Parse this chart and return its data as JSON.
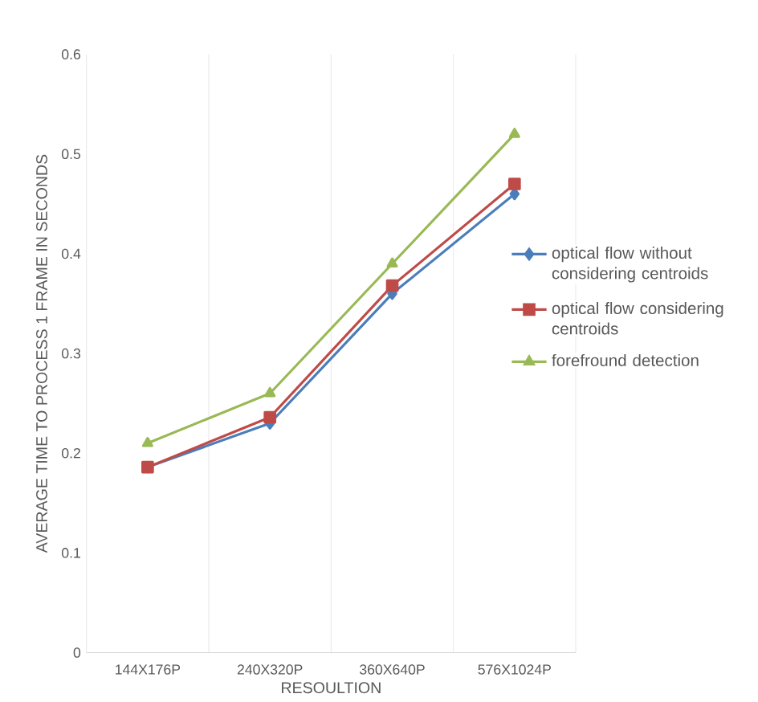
{
  "chart_data": {
    "type": "line",
    "xlabel": "RESOULTION",
    "ylabel": "AVERAGE TIME TO PROCESS 1 FRAME IN SECONDS",
    "categories": [
      "144X176P",
      "240X320P",
      "360X640P",
      "576X1024P"
    ],
    "series": [
      {
        "name": "optical flow without considering centroids",
        "color": "#4a7ebb",
        "marker": "diamond",
        "values": [
          0.186,
          0.23,
          0.36,
          0.46
        ]
      },
      {
        "name": "optical flow  considering centroids",
        "color": "#be4b48",
        "marker": "square",
        "values": [
          0.186,
          0.236,
          0.368,
          0.47
        ]
      },
      {
        "name": "forefround detection",
        "color": "#98b954",
        "marker": "triangle",
        "values": [
          0.21,
          0.26,
          0.39,
          0.52
        ]
      }
    ],
    "ylim": [
      0,
      0.6
    ],
    "yticks": [
      0,
      0.1,
      0.2,
      0.3,
      0.4,
      0.5,
      0.6
    ],
    "grid": "x",
    "legend": "right"
  }
}
